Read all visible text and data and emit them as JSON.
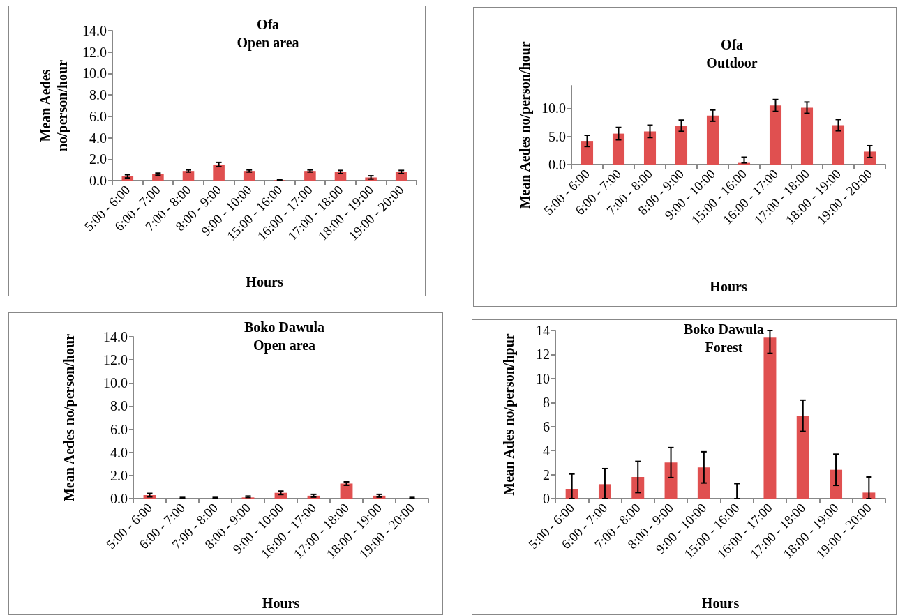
{
  "chart_data": [
    {
      "type": "bar",
      "title": "Ofa\nOpen area",
      "xlabel": "Hours",
      "ylabel": "Mean Aedes\nno/person/hour",
      "categories": [
        "5:00 - 6:00",
        "6:00 - 7:00",
        "7:00 - 8:00",
        "8:00 - 9:00",
        "9:00 - 10:00",
        "15:00 - 16:00",
        "16:00 - 17:00",
        "17:00 - 18:00",
        "18:00 - 19:00",
        "19:00 - 20:00"
      ],
      "values": [
        0.4,
        0.6,
        0.9,
        1.5,
        0.9,
        0.05,
        0.9,
        0.8,
        0.3,
        0.8
      ],
      "errors": [
        0.15,
        0.1,
        0.1,
        0.2,
        0.1,
        0.05,
        0.1,
        0.15,
        0.15,
        0.15
      ],
      "color": "#e05050",
      "ylim": [
        0,
        14
      ],
      "yticks": [
        {
          "value": 0,
          "label": "0.0"
        },
        {
          "value": 2,
          "label": "2.0"
        },
        {
          "value": 4,
          "label": "4.0"
        },
        {
          "value": 6,
          "label": "6.0"
        },
        {
          "value": 8,
          "label": "8.0"
        },
        {
          "value": 10,
          "label": "10.0"
        },
        {
          "value": 12,
          "label": "12.0"
        },
        {
          "value": 14,
          "label": "14.0"
        }
      ],
      "grid": false
    },
    {
      "type": "bar",
      "title": "Ofa\nOutdoor",
      "xlabel": "Hours",
      "ylabel": "Mean Aedes no/person/hour",
      "categories": [
        "5:00 - 6:00",
        "6:00 - 7:00",
        "7:00 - 8:00",
        "8:00 - 9:00",
        "9:00 - 10:00",
        "15:00 - 16:00",
        "16:00 - 17:00",
        "17:00 - 18:00",
        "18:00 - 19:00",
        "19:00 - 20:00"
      ],
      "values": [
        4.2,
        5.5,
        5.9,
        6.9,
        8.7,
        0.3,
        10.5,
        10.1,
        7.0,
        2.3
      ],
      "errors": [
        1.0,
        1.1,
        1.1,
        1.0,
        1.0,
        [
          0.3,
          1.3
        ],
        1.05,
        1.0,
        1.0,
        1.05
      ],
      "color": "#e05050",
      "ylim": [
        0,
        14
      ],
      "yticks": [
        {
          "value": 0,
          "label": "0.0"
        },
        {
          "value": 5,
          "label": "5.0"
        },
        {
          "value": 10,
          "label": "10.0"
        }
      ],
      "grid": false
    },
    {
      "type": "bar",
      "title": "Boko Dawula\nOpen area",
      "xlabel": "Hours",
      "ylabel": "Mean Aedes no/person/hour",
      "categories": [
        "5:00 - 6:00",
        "6:00 - 7:00",
        "7:00 - 8:00",
        "8:00 - 9:00",
        "9:00 - 10:00",
        "16:00 - 17:00",
        "17:00 - 18:00",
        "18:00 - 19:00",
        "19:00 - 20:00"
      ],
      "values": [
        0.3,
        0.0,
        0.0,
        0.1,
        0.5,
        0.25,
        1.3,
        0.25,
        0.0
      ],
      "errors": [
        0.15,
        [
          0,
          0.1
        ],
        [
          0,
          0.1
        ],
        [
          0.1,
          0.22
        ],
        0.15,
        0.12,
        0.15,
        0.12,
        [
          0,
          0.1
        ]
      ],
      "color": "#e05050",
      "ylim": [
        0,
        14
      ],
      "yticks": [
        {
          "value": 0,
          "label": "0.0"
        },
        {
          "value": 2,
          "label": "2.0"
        },
        {
          "value": 4,
          "label": "4.0"
        },
        {
          "value": 6,
          "label": "6.0"
        },
        {
          "value": 8,
          "label": "8.0"
        },
        {
          "value": 10,
          "label": "10.0"
        },
        {
          "value": 12,
          "label": "12.0"
        },
        {
          "value": 14,
          "label": "14.0"
        }
      ],
      "grid": false
    },
    {
      "type": "bar",
      "title": "Boko Dawula\nForest",
      "xlabel": "Hours",
      "ylabel": "Mean Ades no/person/hpur",
      "categories": [
        "5:00 - 6:00",
        "6:00 - 7:00",
        "7:00 - 8:00",
        "8:00 - 9:00",
        "9:00 - 10:00",
        "15:00 - 16:00",
        "16:00 - 17:00",
        "17:00 - 18:00",
        "18:00 - 19:00",
        "19:00 - 20:00"
      ],
      "values": [
        0.8,
        1.2,
        1.8,
        3.0,
        2.6,
        0,
        13.4,
        6.9,
        2.4,
        0.5
      ],
      "errors": [
        [
          0,
          2.05
        ],
        [
          0,
          2.5
        ],
        [
          0.5,
          3.1
        ],
        1.25,
        1.3,
        [
          0,
          1.25
        ],
        [
          12.1,
          14
        ],
        1.3,
        1.3,
        [
          0,
          1.8
        ]
      ],
      "color": "#e05050",
      "ylim": [
        0,
        14
      ],
      "yticks": [
        0,
        2,
        4,
        6,
        8,
        10,
        12,
        14
      ],
      "grid": false
    }
  ]
}
